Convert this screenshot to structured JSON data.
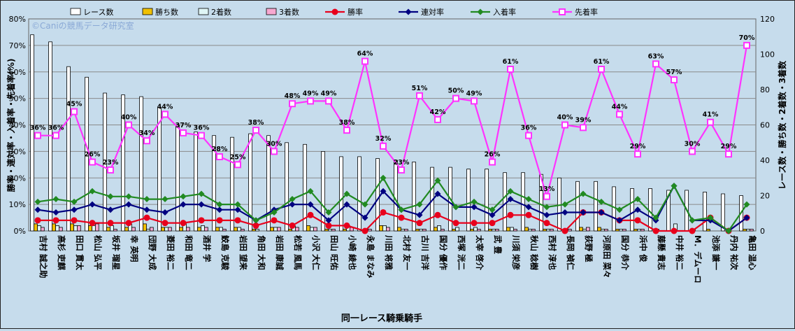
{
  "chart_data": {
    "type": "bar+line",
    "title": "",
    "watermark": "©Caniの競馬データ研究室",
    "xlabel": "同一レース騎乗騎手",
    "ylabel_left": "勝率・連対率・入着率・先着率(%)",
    "ylabel_right": "レース数・勝ち数・2着数・3着数",
    "y_left": {
      "min": 0,
      "max": 80,
      "step": 10,
      "unit": "%"
    },
    "y_right": {
      "min": 0,
      "max": 120,
      "step": 20
    },
    "legend_position": "top",
    "categories": [
      "吉村 誠之助",
      "高杉 吏麒",
      "田口 貫太",
      "松山 弘平",
      "坂井 瑠星",
      "幸 英明",
      "団野 大成",
      "菱田 裕二",
      "和田 竜二",
      "酒井 学",
      "鮫島 克駿",
      "岩田 望来",
      "角田 大和",
      "岩田 康誠",
      "松若 風馬",
      "小沢 大仁",
      "田山 旺佑",
      "小崎 綾也",
      "永島 まなみ",
      "川田 将雅",
      "北村 友一",
      "古川 吉洋",
      "国分 優作",
      "西塚 洸二",
      "太宰 啓介",
      "武 豊",
      "川須 栄彦",
      "秋山 稔樹",
      "西村 淳也",
      "長岡 禎仁",
      "荻野 極",
      "河原田 菜々",
      "国分 恭介",
      "浜中 俊",
      "藤懸 貴志",
      "中井 裕二",
      "M．デムーロ",
      "池添 謙一",
      "丹内 祐次",
      "亀田 温心"
    ],
    "bar_series": [
      {
        "name": "レース数",
        "color": "#ffffff",
        "values": [
          111,
          107,
          93,
          87,
          78,
          77,
          76,
          70,
          60,
          56,
          54,
          53,
          55,
          54,
          50,
          49,
          45,
          42,
          42,
          41,
          40,
          39,
          36,
          36,
          35,
          35,
          33,
          33,
          32,
          30,
          28,
          28,
          25,
          24,
          24,
          23,
          23,
          22,
          21,
          20
        ]
      },
      {
        "name": "勝ち数",
        "color": "#f0c000",
        "values": [
          4,
          4,
          4,
          3,
          2,
          2,
          4,
          2,
          2,
          2,
          2,
          2,
          1,
          2,
          1,
          3,
          1,
          1,
          0,
          3,
          2,
          1,
          2,
          1,
          1,
          1,
          2,
          2,
          1,
          0,
          2,
          2,
          1,
          1,
          0,
          0,
          0,
          1,
          0,
          1
        ]
      },
      {
        "name": "2着数",
        "color": "#dff5f5",
        "values": [
          3,
          3,
          3,
          3,
          3,
          4,
          1,
          2,
          5,
          3,
          2,
          2,
          1,
          2,
          3,
          2,
          1,
          3,
          1,
          3,
          1,
          1,
          3,
          2,
          2,
          1,
          2,
          1,
          1,
          1,
          1,
          1,
          1,
          1,
          1,
          4,
          1,
          0,
          0,
          1
        ]
      },
      {
        "name": "3着数",
        "color": "#f7a8d0",
        "values": [
          2,
          2,
          3,
          4,
          1,
          2,
          2,
          2,
          2,
          2,
          1,
          1,
          0,
          2,
          2,
          2,
          1,
          2,
          1,
          2,
          1,
          1,
          1,
          0,
          1,
          1,
          1,
          1,
          1,
          1,
          2,
          1,
          1,
          1,
          0,
          0,
          0,
          0,
          0,
          1
        ]
      }
    ],
    "line_series": [
      {
        "name": "勝率",
        "color": "#e8001c",
        "marker": "circle",
        "values": [
          4,
          4,
          4,
          3,
          3,
          3,
          5,
          3,
          3,
          4,
          4,
          4,
          2,
          4,
          2,
          6,
          2,
          2,
          0,
          7,
          5,
          3,
          6,
          3,
          3,
          3,
          6,
          6,
          3,
          0,
          7,
          7,
          4,
          4,
          0,
          0,
          0,
          5,
          0,
          5
        ]
      },
      {
        "name": "連対率",
        "color": "#000080",
        "marker": "diamond",
        "values": [
          8,
          7,
          8,
          10,
          8,
          10,
          8,
          7,
          10,
          10,
          8,
          8,
          4,
          8,
          10,
          10,
          4,
          10,
          5,
          15,
          8,
          6,
          14,
          9,
          9,
          6,
          12,
          9,
          6,
          7,
          7,
          7,
          4,
          8,
          4,
          17,
          4,
          4,
          0,
          5
        ]
      },
      {
        "name": "入着率",
        "color": "#218a21",
        "marker": "diamond",
        "values": [
          11,
          12,
          11,
          15,
          13,
          13,
          12,
          12,
          13,
          14,
          10,
          10,
          4,
          7,
          12,
          15,
          7,
          14,
          10,
          20,
          8,
          10,
          19,
          9,
          11,
          8,
          15,
          12,
          9,
          10,
          14,
          11,
          8,
          12,
          5,
          17,
          4,
          5,
          0,
          10
        ]
      },
      {
        "name": "先着率",
        "color": "#ff33ff",
        "marker": "square",
        "values": [
          36,
          36,
          45,
          26,
          23,
          40,
          34,
          44,
          37,
          36,
          28,
          25,
          38,
          30,
          48,
          49,
          49,
          38,
          64,
          32,
          23,
          51,
          42,
          50,
          49,
          26,
          61,
          36,
          13,
          40,
          39,
          61,
          44,
          29,
          63,
          57,
          30,
          41,
          29,
          70
        ]
      }
    ],
    "data_labels": "先着率",
    "data_label_texts": [
      "36%",
      "36%",
      "45%",
      "26%",
      "23%",
      "40%",
      "34%",
      "44%",
      "37%",
      "36%",
      "28%",
      "25%",
      "38%",
      "30%",
      "48%",
      "49%",
      "49%",
      "38%",
      "64%",
      "32%",
      "23%",
      "51%",
      "42%",
      "50%",
      "49%",
      "26%",
      "61%",
      "36%",
      "13%",
      "40%",
      "39%",
      "61%",
      "44%",
      "29%",
      "63%",
      "57%",
      "30%",
      "41%",
      "29%",
      "70%"
    ],
    "y_left_ticks": [
      "0%",
      "10%",
      "20%",
      "30%",
      "40%",
      "50%",
      "60%",
      "70%",
      "80%"
    ],
    "y_right_ticks": [
      "0",
      "20",
      "40",
      "60",
      "80",
      "100",
      "120"
    ],
    "grid": true
  }
}
